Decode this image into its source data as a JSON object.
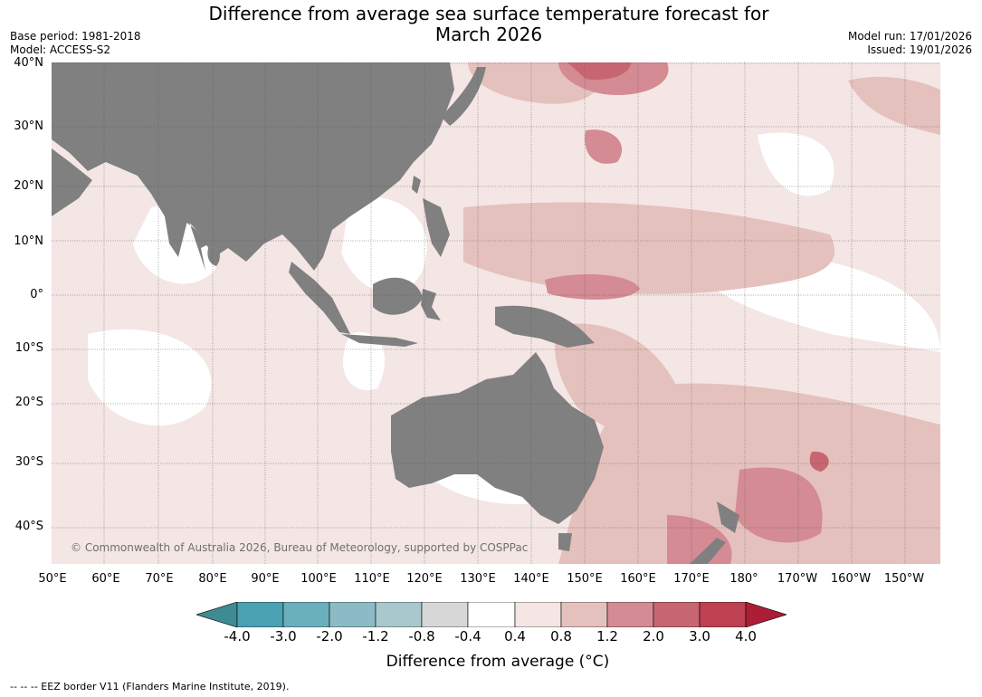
{
  "title_line1": "Difference from average sea surface temperature forecast for",
  "title_line2": "March 2026",
  "base_period": "Base period: 1981-2018",
  "model": "Model: ACCESS-S2",
  "model_run": "Model run: 17/01/2026",
  "issued": "Issued: 19/01/2026",
  "lat_labels": [
    "40°N",
    "30°N",
    "20°N",
    "10°N",
    "0°",
    "10°S",
    "20°S",
    "30°S",
    "40°S"
  ],
  "lon_labels": [
    "50°E",
    "60°E",
    "70°E",
    "80°E",
    "90°E",
    "100°E",
    "110°E",
    "120°E",
    "130°E",
    "140°E",
    "150°E",
    "160°E",
    "170°E",
    "180°",
    "170°W",
    "160°W",
    "150°W"
  ],
  "copyright": "© Commonwealth of Australia 2026, Bureau of Meteorology, supported by COSPPac",
  "colorbar": {
    "ticks": [
      "-4.0",
      "-3.0",
      "-2.0",
      "-1.2",
      "-0.8",
      "-0.4",
      "0.4",
      "0.8",
      "1.2",
      "2.0",
      "3.0",
      "4.0"
    ],
    "colors": [
      "#3f8b93",
      "#4aa1b1",
      "#6aafbc",
      "#8cbac5",
      "#a9c8cb",
      "#d7d7d7",
      "#ffffff",
      "#f4e6e5",
      "#e5c1bd",
      "#d48b93",
      "#c76671",
      "#bd4150",
      "#ad1e36"
    ],
    "title": "Difference from average (°C)"
  },
  "land_color": "#808080",
  "eez_note": "--  --  -- EEZ border V11 (Flanders Marine Institute, 2019)."
}
